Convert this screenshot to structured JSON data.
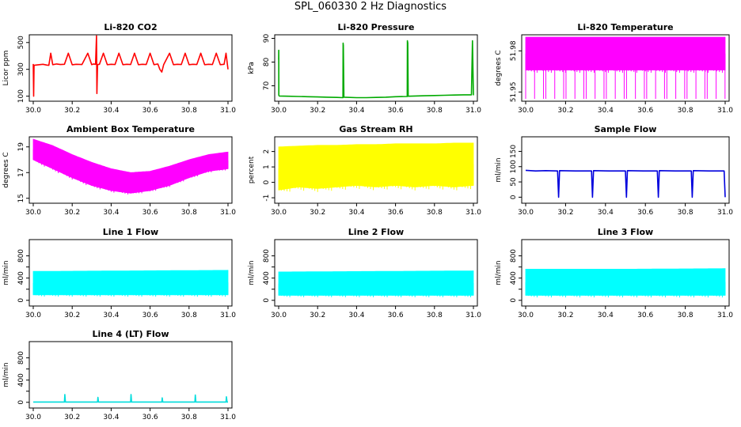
{
  "page": {
    "title": "SPL_060330  2 Hz Diagnostics"
  },
  "chart_data": [
    {
      "id": "p1",
      "type": "line",
      "title": "Li-820 CO2",
      "ylabel": "Licor ppm",
      "color": "#ff0000",
      "xlim": [
        30.0,
        31.0
      ],
      "ylim": [
        80,
        540
      ],
      "x_ticks": [
        "30.0",
        "30.2",
        "30.4",
        "30.6",
        "30.8",
        "31.0"
      ],
      "y_ticks": [
        100,
        300,
        500
      ],
      "series": [
        {
          "name": "co2",
          "x": [
            30.0,
            30.002,
            30.004,
            30.03,
            30.05,
            30.07,
            30.08,
            30.09,
            30.1,
            30.12,
            30.14,
            30.16,
            30.18,
            30.2,
            30.22,
            30.25,
            30.28,
            30.3,
            30.31,
            30.32,
            30.325,
            30.327,
            30.33,
            30.332,
            30.34,
            30.36,
            30.38,
            30.4,
            30.42,
            30.44,
            30.46,
            30.48,
            30.5,
            30.52,
            30.54,
            30.56,
            30.58,
            30.6,
            30.62,
            30.64,
            30.65,
            30.66,
            30.67,
            30.7,
            30.72,
            30.74,
            30.76,
            30.78,
            30.8,
            30.82,
            30.84,
            30.86,
            30.88,
            30.9,
            30.92,
            30.94,
            30.96,
            30.98,
            30.99,
            31.0
          ],
          "y": [
            340,
            100,
            330,
            335,
            338,
            332,
            330,
            420,
            335,
            340,
            336,
            338,
            420,
            334,
            338,
            336,
            420,
            335,
            340,
            338,
            550,
            120,
            330,
            336,
            338,
            420,
            335,
            338,
            336,
            420,
            335,
            338,
            336,
            420,
            335,
            338,
            336,
            420,
            335,
            340,
            300,
            280,
            336,
            420,
            335,
            338,
            336,
            420,
            335,
            338,
            336,
            420,
            335,
            338,
            336,
            420,
            335,
            338,
            420,
            300
          ]
        }
      ]
    },
    {
      "id": "p2",
      "type": "line",
      "title": "Li-820 Pressure",
      "ylabel": "kPa",
      "color": "#00aa00",
      "xlim": [
        30.0,
        31.0
      ],
      "ylim": [
        64.5,
        90.5
      ],
      "x_ticks": [
        "30.0",
        "30.2",
        "30.4",
        "30.6",
        "30.8",
        "31.0"
      ],
      "y_ticks": [
        70,
        80,
        90
      ],
      "series": [
        {
          "name": "pressure",
          "x": [
            30.0,
            30.0005,
            30.001,
            30.003,
            30.05,
            30.1,
            30.15,
            30.2,
            30.25,
            30.3,
            30.33,
            30.331,
            30.332,
            30.335,
            30.4,
            30.45,
            30.5,
            30.55,
            30.6,
            30.66,
            30.661,
            30.663,
            30.665,
            30.7,
            30.75,
            30.8,
            30.85,
            30.9,
            30.95,
            30.99,
            30.995,
            31.0
          ],
          "y": [
            81,
            85,
            66,
            65.7,
            65.6,
            65.5,
            65.4,
            65.3,
            65.2,
            65.1,
            65.0,
            88,
            87,
            65.2,
            65.0,
            65.0,
            65.1,
            65.2,
            65.4,
            65.5,
            89,
            88,
            65.6,
            65.7,
            65.8,
            65.9,
            66.0,
            66.1,
            66.2,
            66.2,
            89,
            66
          ]
        }
      ]
    },
    {
      "id": "p3",
      "type": "area",
      "title": "Li-820 Temperature",
      "ylabel": "degrees C",
      "color": "#ff00ff",
      "xlim": [
        30.0,
        31.0
      ],
      "ylim": [
        51.945,
        51.99
      ],
      "x_ticks": [
        "30.0",
        "30.2",
        "30.4",
        "30.6",
        "30.8",
        "31.0"
      ],
      "y_ticks": [
        51.95,
        51.98
      ],
      "y_tick_labels": [
        "51.95",
        "51.98"
      ],
      "band": {
        "x": [
          30.0,
          31.0
        ],
        "y_low": [
          51.966,
          51.966
        ],
        "y_high": [
          51.99,
          51.99
        ],
        "fill_low": [
          51.945,
          51.945
        ]
      }
    },
    {
      "id": "p4",
      "type": "area",
      "title": "Ambient Box Temperature",
      "ylabel": "degrees C",
      "color": "#ff00ff",
      "xlim": [
        30.0,
        31.0
      ],
      "ylim": [
        14.8,
        19.6
      ],
      "x_ticks": [
        "30.0",
        "30.2",
        "30.4",
        "30.6",
        "30.8",
        "31.0"
      ],
      "y_ticks": [
        15,
        17,
        19
      ],
      "band": {
        "x": [
          30.0,
          30.1,
          30.2,
          30.3,
          30.4,
          30.5,
          30.6,
          30.7,
          30.8,
          30.9,
          31.0
        ],
        "y_low": [
          18.0,
          17.3,
          16.6,
          16.0,
          15.6,
          15.4,
          15.6,
          16.0,
          16.6,
          17.1,
          17.3
        ],
        "y_high": [
          19.6,
          19.1,
          18.4,
          17.8,
          17.3,
          17.0,
          17.1,
          17.5,
          18.0,
          18.4,
          18.6
        ]
      }
    },
    {
      "id": "p5",
      "type": "area",
      "title": "Gas Stream RH",
      "ylabel": "percent",
      "color": "#ffff00",
      "xlim": [
        30.0,
        31.0
      ],
      "ylim": [
        -1.2,
        2.8
      ],
      "x_ticks": [
        "30.0",
        "30.2",
        "30.4",
        "30.6",
        "30.8",
        "31.0"
      ],
      "y_ticks": [
        -1,
        0,
        1,
        2
      ],
      "band": {
        "x": [
          30.0,
          30.1,
          30.2,
          30.3,
          30.4,
          30.5,
          30.6,
          30.7,
          30.8,
          30.9,
          31.0
        ],
        "y_low": [
          -0.5,
          -0.3,
          -0.4,
          -0.3,
          -0.2,
          -0.3,
          -0.2,
          -0.3,
          -0.2,
          -0.3,
          -0.2
        ],
        "y_high": [
          2.3,
          2.35,
          2.4,
          2.4,
          2.45,
          2.45,
          2.5,
          2.5,
          2.5,
          2.55,
          2.55
        ]
      }
    },
    {
      "id": "p6",
      "type": "line",
      "title": "Sample Flow",
      "ylabel": "ml/min",
      "color": "#0000dd",
      "xlim": [
        30.0,
        31.0
      ],
      "ylim": [
        -12,
        190
      ],
      "x_ticks": [
        "30.0",
        "30.2",
        "30.4",
        "30.6",
        "30.8",
        "31.0"
      ],
      "y_ticks": [
        0,
        50,
        100,
        150
      ],
      "series": [
        {
          "name": "flow",
          "x": [
            30.0,
            30.05,
            30.1,
            30.16,
            30.165,
            30.17,
            30.25,
            30.33,
            30.335,
            30.34,
            30.42,
            30.5,
            30.505,
            30.51,
            30.59,
            30.66,
            30.665,
            30.67,
            30.75,
            30.83,
            30.835,
            30.84,
            30.92,
            30.995,
            31.0
          ],
          "y": [
            88,
            86,
            87,
            86,
            0,
            87,
            86,
            86,
            0,
            87,
            86,
            86,
            0,
            87,
            86,
            86,
            0,
            87,
            86,
            86,
            0,
            87,
            86,
            86,
            0
          ]
        }
      ]
    },
    {
      "id": "p7",
      "type": "area",
      "title": "Line 1 Flow",
      "ylabel": "ml/min",
      "color": "#00ffff",
      "xlim": [
        30.0,
        31.0
      ],
      "ylim": [
        -60,
        1050
      ],
      "x_ticks": [
        "30.0",
        "30.2",
        "30.4",
        "30.6",
        "30.8",
        "31.0"
      ],
      "y_ticks": [
        0,
        200,
        400,
        600,
        800
      ],
      "y_tick_labels": [
        "0",
        "",
        "400",
        "",
        "800"
      ],
      "band": {
        "x": [
          30.0,
          30.5,
          31.0
        ],
        "y_low": [
          100,
          100,
          100
        ],
        "y_high": [
          520,
          530,
          540
        ]
      }
    },
    {
      "id": "p8",
      "type": "area",
      "title": "Line 2 Flow",
      "ylabel": "ml/min",
      "color": "#00ffff",
      "xlim": [
        30.0,
        31.0
      ],
      "ylim": [
        -60,
        1050
      ],
      "x_ticks": [
        "30.0",
        "30.2",
        "30.4",
        "30.6",
        "30.8",
        "31.0"
      ],
      "y_ticks": [
        0,
        200,
        400,
        600,
        800
      ],
      "y_tick_labels": [
        "0",
        "",
        "400",
        "",
        "800"
      ],
      "band": {
        "x": [
          30.0,
          30.5,
          31.0
        ],
        "y_low": [
          90,
          90,
          90
        ],
        "y_high": [
          510,
          520,
          530
        ]
      }
    },
    {
      "id": "p9",
      "type": "area",
      "title": "Line 3 Flow",
      "ylabel": "ml/min",
      "color": "#00ffff",
      "xlim": [
        30.0,
        31.0
      ],
      "ylim": [
        -60,
        1050
      ],
      "x_ticks": [
        "30.0",
        "30.2",
        "30.4",
        "30.6",
        "30.8",
        "31.0"
      ],
      "y_ticks": [
        0,
        200,
        400,
        600,
        800
      ],
      "y_tick_labels": [
        "0",
        "",
        "400",
        "",
        "800"
      ],
      "band": {
        "x": [
          30.0,
          30.5,
          31.0
        ],
        "y_low": [
          90,
          90,
          90
        ],
        "y_high": [
          560,
          560,
          570
        ]
      }
    },
    {
      "id": "p10",
      "type": "line",
      "title": "Line 4 (LT) Flow",
      "ylabel": "ml/min",
      "color": "#00dddd",
      "xlim": [
        30.0,
        31.0
      ],
      "ylim": [
        -60,
        1050
      ],
      "x_ticks": [
        "30.0",
        "30.2",
        "30.4",
        "30.6",
        "30.8",
        "31.0"
      ],
      "y_ticks": [
        0,
        200,
        400,
        600,
        800
      ],
      "y_tick_labels": [
        "0",
        "",
        "400",
        "",
        "800"
      ],
      "series": [
        {
          "name": "lt_flow",
          "x": [
            30.0,
            30.16,
            30.162,
            30.165,
            30.33,
            30.332,
            30.335,
            30.5,
            30.502,
            30.505,
            30.66,
            30.662,
            30.665,
            30.83,
            30.832,
            30.835,
            30.99,
            30.992,
            30.995,
            31.0
          ],
          "y": [
            5,
            5,
            140,
            5,
            5,
            90,
            5,
            5,
            140,
            5,
            5,
            80,
            5,
            5,
            130,
            5,
            5,
            100,
            5,
            5
          ]
        }
      ]
    }
  ]
}
